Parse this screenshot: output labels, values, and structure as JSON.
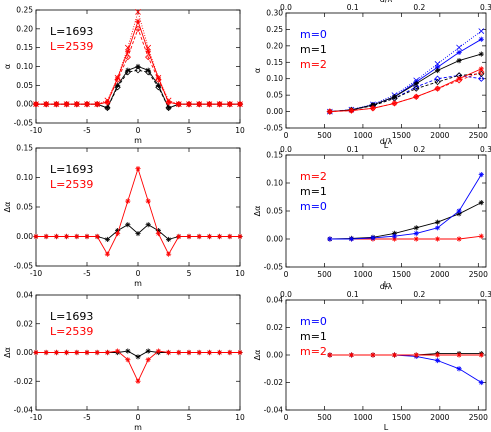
{
  "chart_data": [
    {
      "type": "line",
      "panel": "top-left",
      "xlabel": "m",
      "ylabel": "α",
      "xlim": [
        -10,
        10
      ],
      "ylim": [
        -0.05,
        0.25
      ],
      "xticks": [
        -10,
        -5,
        0,
        5,
        10
      ],
      "yticks": [
        -0.05,
        0.0,
        0.05,
        0.1,
        0.15,
        0.2,
        0.25
      ],
      "ytick_labels": [
        "-0.05",
        "0.00",
        "0.05",
        "0.10",
        "0.15",
        "0.20",
        "0.25"
      ],
      "legend": [
        "L=1693",
        "L=2539"
      ],
      "series": [
        {
          "name": "L=1693",
          "color": "#000000",
          "style": "solid",
          "marker": "asterisk",
          "x": [
            -10,
            -9,
            -8,
            -7,
            -6,
            -5,
            -4,
            -3,
            -2,
            -1,
            0,
            1,
            2,
            3,
            4,
            5,
            6,
            7,
            8,
            9,
            10
          ],
          "y": [
            0,
            0,
            0,
            0,
            0,
            0,
            0,
            -0.01,
            0.05,
            0.09,
            0.1,
            0.09,
            0.05,
            -0.01,
            0,
            0,
            0,
            0,
            0,
            0,
            0
          ]
        },
        {
          "name": "",
          "color": "#000000",
          "style": "dashed",
          "marker": "diamond",
          "x": [
            -10,
            -9,
            -8,
            -7,
            -6,
            -5,
            -4,
            -3,
            -2,
            -1,
            0,
            1,
            2,
            3,
            4,
            5,
            6,
            7,
            8,
            9,
            10
          ],
          "y": [
            0,
            0,
            0,
            0,
            0,
            0,
            0,
            -0.01,
            0.045,
            0.085,
            0.09,
            0.085,
            0.045,
            -0.01,
            0,
            0,
            0,
            0,
            0,
            0,
            0
          ]
        },
        {
          "name": "L=2539",
          "color": "#ff0000",
          "style": "solid",
          "marker": "asterisk",
          "x": [
            -10,
            -9,
            -8,
            -7,
            -6,
            -5,
            -4,
            -3,
            -2,
            -1,
            0,
            1,
            2,
            3,
            4,
            5,
            6,
            7,
            8,
            9,
            10
          ],
          "y": [
            0,
            0,
            0,
            0,
            0,
            0,
            0,
            0.005,
            0.07,
            0.14,
            0.22,
            0.14,
            0.07,
            0.005,
            0,
            0,
            0,
            0,
            0,
            0,
            0
          ]
        },
        {
          "name": "",
          "color": "#ff0000",
          "style": "dotted",
          "marker": "x",
          "x": [
            -10,
            -9,
            -8,
            -7,
            -6,
            -5,
            -4,
            -3,
            -2,
            -1,
            0,
            1,
            2,
            3,
            4,
            5,
            6,
            7,
            8,
            9,
            10
          ],
          "y": [
            0,
            0,
            0,
            0,
            0,
            0,
            0,
            0.01,
            0.07,
            0.15,
            0.245,
            0.15,
            0.07,
            0.01,
            0,
            0,
            0,
            0,
            0,
            0,
            0
          ]
        },
        {
          "name": "",
          "color": "#ff0000",
          "style": "dashed",
          "marker": "diamond",
          "x": [
            -10,
            -9,
            -8,
            -7,
            -6,
            -5,
            -4,
            -3,
            -2,
            -1,
            0,
            1,
            2,
            3,
            4,
            5,
            6,
            7,
            8,
            9,
            10
          ],
          "y": [
            0,
            0,
            0,
            0,
            0,
            0,
            0,
            0.005,
            0.065,
            0.125,
            0.2,
            0.125,
            0.065,
            0.005,
            0,
            0,
            0,
            0,
            0,
            0,
            0
          ]
        }
      ]
    },
    {
      "type": "line",
      "panel": "top-right",
      "xlabel": "L",
      "ylabel": "α",
      "top_axis_label": "d/λ",
      "xlim": [
        0,
        2600
      ],
      "ylim": [
        -0.05,
        0.3
      ],
      "xticks": [
        0,
        500,
        1000,
        1500,
        2000,
        2500
      ],
      "top_ticks": [
        "0.0",
        "0.1",
        "0.2",
        "0.3"
      ],
      "yticks": [
        -0.05,
        0.0,
        0.05,
        0.1,
        0.15,
        0.2,
        0.25,
        0.3
      ],
      "ytick_labels": [
        "-0.05",
        "0.00",
        "0.05",
        "0.10",
        "0.15",
        "0.20",
        "0.25",
        "0.30"
      ],
      "legend": [
        "m=0",
        "m=1",
        "m=2"
      ],
      "series": [
        {
          "name": "m=0",
          "color": "#0000ff",
          "style": "solid",
          "marker": "asterisk",
          "x": [
            570,
            850,
            1130,
            1410,
            1693,
            1970,
            2250,
            2539
          ],
          "y": [
            0.0,
            0.005,
            0.02,
            0.045,
            0.09,
            0.135,
            0.18,
            0.22
          ]
        },
        {
          "name": "",
          "color": "#0000ff",
          "style": "dotted",
          "marker": "x",
          "x": [
            570,
            850,
            1130,
            1410,
            1693,
            1970,
            2250,
            2539
          ],
          "y": [
            0.0,
            0.006,
            0.022,
            0.05,
            0.095,
            0.145,
            0.195,
            0.245
          ]
        },
        {
          "name": "",
          "color": "#0000ff",
          "style": "dashed",
          "marker": "diamond",
          "x": [
            570,
            850,
            1130,
            1410,
            1693,
            1970,
            2250,
            2539
          ],
          "y": [
            0.0,
            0.005,
            0.02,
            0.04,
            0.075,
            0.1,
            0.11,
            0.1
          ]
        },
        {
          "name": "m=1",
          "color": "#000000",
          "style": "solid",
          "marker": "asterisk",
          "x": [
            570,
            850,
            1130,
            1410,
            1693,
            1970,
            2250,
            2539
          ],
          "y": [
            0.0,
            0.005,
            0.02,
            0.045,
            0.085,
            0.125,
            0.155,
            0.175
          ]
        },
        {
          "name": "",
          "color": "#000000",
          "style": "dashed",
          "marker": "diamond",
          "x": [
            570,
            850,
            1130,
            1410,
            1693,
            1970,
            2250,
            2539
          ],
          "y": [
            0.0,
            0.005,
            0.018,
            0.04,
            0.07,
            0.09,
            0.11,
            0.115
          ]
        },
        {
          "name": "m=2",
          "color": "#ff0000",
          "style": "solid",
          "marker": "asterisk",
          "x": [
            570,
            850,
            1130,
            1410,
            1693,
            1970,
            2250,
            2539
          ],
          "y": [
            0.0,
            0.003,
            0.01,
            0.025,
            0.045,
            0.07,
            0.1,
            0.13
          ]
        },
        {
          "name": "",
          "color": "#ff0000",
          "style": "dashed",
          "marker": "diamond",
          "x": [
            570,
            850,
            1130,
            1410,
            1693,
            1970,
            2250,
            2539
          ],
          "y": [
            0.0,
            0.003,
            0.01,
            0.025,
            0.045,
            0.07,
            0.095,
            0.12
          ]
        }
      ]
    },
    {
      "type": "line",
      "panel": "middle-left",
      "xlabel": "m",
      "ylabel": "Δα",
      "xlim": [
        -10,
        10
      ],
      "ylim": [
        -0.05,
        0.15
      ],
      "xticks": [
        -10,
        -5,
        0,
        5,
        10
      ],
      "yticks": [
        -0.05,
        0.0,
        0.05,
        0.1,
        0.15
      ],
      "ytick_labels": [
        "-0.05",
        "0.00",
        "0.05",
        "0.10",
        "0.15"
      ],
      "legend": [
        "L=1693",
        "L=2539"
      ],
      "series": [
        {
          "name": "L=1693",
          "color": "#000000",
          "style": "solid",
          "marker": "asterisk",
          "x": [
            -10,
            -9,
            -8,
            -7,
            -6,
            -5,
            -4,
            -3,
            -2,
            -1,
            0,
            1,
            2,
            3,
            4,
            5,
            6,
            7,
            8,
            9,
            10
          ],
          "y": [
            0,
            0,
            0,
            0,
            0,
            0,
            0,
            -0.005,
            0.01,
            0.02,
            0.005,
            0.02,
            0.01,
            -0.005,
            0,
            0,
            0,
            0,
            0,
            0,
            0
          ]
        },
        {
          "name": "L=2539",
          "color": "#ff0000",
          "style": "solid",
          "marker": "asterisk",
          "x": [
            -10,
            -9,
            -8,
            -7,
            -6,
            -5,
            -4,
            -3,
            -2,
            -1,
            0,
            1,
            2,
            3,
            4,
            5,
            6,
            7,
            8,
            9,
            10
          ],
          "y": [
            0,
            0,
            0,
            0,
            0,
            0,
            0,
            -0.03,
            0.005,
            0.06,
            0.115,
            0.06,
            0.005,
            -0.03,
            0,
            0,
            0,
            0,
            0,
            0,
            0
          ]
        }
      ]
    },
    {
      "type": "line",
      "panel": "middle-right",
      "xlabel": "L",
      "ylabel": "Δα",
      "top_axis_label": "d/λ",
      "xlim": [
        0,
        2600
      ],
      "ylim": [
        -0.05,
        0.15
      ],
      "xticks": [
        0,
        500,
        1000,
        1500,
        2000,
        2500
      ],
      "top_ticks": [
        "0.0",
        "0.1",
        "0.2",
        "0.3"
      ],
      "yticks": [
        -0.05,
        0.0,
        0.05,
        0.1,
        0.15
      ],
      "ytick_labels": [
        "-0.05",
        "0.00",
        "0.05",
        "0.10",
        "0.15"
      ],
      "legend": [
        "m=2",
        "m=1",
        "m=0"
      ],
      "series": [
        {
          "name": "m=2",
          "color": "#ff0000",
          "style": "solid",
          "marker": "asterisk",
          "x": [
            570,
            850,
            1130,
            1410,
            1693,
            1970,
            2250,
            2539
          ],
          "y": [
            0,
            0,
            0,
            0,
            0,
            0,
            0,
            0.005
          ]
        },
        {
          "name": "m=1",
          "color": "#000000",
          "style": "solid",
          "marker": "asterisk",
          "x": [
            570,
            850,
            1130,
            1410,
            1693,
            1970,
            2250,
            2539
          ],
          "y": [
            0,
            0.001,
            0.003,
            0.01,
            0.02,
            0.03,
            0.045,
            0.065
          ]
        },
        {
          "name": "m=0",
          "color": "#0000ff",
          "style": "solid",
          "marker": "asterisk",
          "x": [
            570,
            850,
            1130,
            1410,
            1693,
            1970,
            2250,
            2539
          ],
          "y": [
            0,
            0,
            0.002,
            0.005,
            0.01,
            0.02,
            0.05,
            0.115
          ]
        }
      ]
    },
    {
      "type": "line",
      "panel": "bottom-left",
      "xlabel": "m",
      "ylabel": "Δα",
      "xlim": [
        -10,
        10
      ],
      "ylim": [
        -0.04,
        0.04
      ],
      "xticks": [
        -10,
        -5,
        0,
        5,
        10
      ],
      "yticks": [
        -0.04,
        -0.02,
        0.0,
        0.02,
        0.04
      ],
      "ytick_labels": [
        "-0.04",
        "-0.02",
        "0.00",
        "0.02",
        "0.04"
      ],
      "legend": [
        "L=1693",
        "L=2539"
      ],
      "series": [
        {
          "name": "L=1693",
          "color": "#000000",
          "style": "solid",
          "marker": "asterisk",
          "x": [
            -10,
            -9,
            -8,
            -7,
            -6,
            -5,
            -4,
            -3,
            -2,
            -1,
            0,
            1,
            2,
            3,
            4,
            5,
            6,
            7,
            8,
            9,
            10
          ],
          "y": [
            0,
            0,
            0,
            0,
            0,
            0,
            0,
            0,
            0,
            0.001,
            -0.003,
            0.001,
            0,
            0,
            0,
            0,
            0,
            0,
            0,
            0,
            0
          ]
        },
        {
          "name": "L=2539",
          "color": "#ff0000",
          "style": "solid",
          "marker": "asterisk",
          "x": [
            -10,
            -9,
            -8,
            -7,
            -6,
            -5,
            -4,
            -3,
            -2,
            -1,
            0,
            1,
            2,
            3,
            4,
            5,
            6,
            7,
            8,
            9,
            10
          ],
          "y": [
            0,
            0,
            0,
            0,
            0,
            0,
            0,
            0,
            0.001,
            -0.005,
            -0.02,
            -0.005,
            0.001,
            0,
            0,
            0,
            0,
            0,
            0,
            0,
            0
          ]
        }
      ]
    },
    {
      "type": "line",
      "panel": "bottom-right",
      "xlabel": "L",
      "ylabel": "Δα",
      "top_axis_label": "d/λ",
      "xlim": [
        0,
        2600
      ],
      "ylim": [
        -0.04,
        0.04
      ],
      "xticks": [
        0,
        500,
        1000,
        1500,
        2000,
        2500
      ],
      "top_ticks": [
        "0.0",
        "0.1",
        "0.2",
        "0.3"
      ],
      "yticks": [
        -0.04,
        -0.02,
        0.0,
        0.02,
        0.04
      ],
      "ytick_labels": [
        "-0.04",
        "-0.02",
        "0.00",
        "0.02",
        "0.04"
      ],
      "legend": [
        "m=0",
        "m=1",
        "m=2"
      ],
      "series": [
        {
          "name": "m=0",
          "color": "#0000ff",
          "style": "solid",
          "marker": "asterisk",
          "x": [
            570,
            850,
            1130,
            1410,
            1693,
            1970,
            2250,
            2539
          ],
          "y": [
            0,
            0,
            0,
            0,
            -0.001,
            -0.004,
            -0.01,
            -0.02
          ]
        },
        {
          "name": "m=1",
          "color": "#000000",
          "style": "solid",
          "marker": "asterisk",
          "x": [
            570,
            850,
            1130,
            1410,
            1693,
            1970,
            2250,
            2539
          ],
          "y": [
            0,
            0,
            0,
            0,
            0,
            0.001,
            0.001,
            0.001
          ]
        },
        {
          "name": "m=2",
          "color": "#ff0000",
          "style": "solid",
          "marker": "asterisk",
          "x": [
            570,
            850,
            1130,
            1410,
            1693,
            1970,
            2250,
            2539
          ],
          "y": [
            0,
            0,
            0,
            0,
            0,
            0,
            0,
            0
          ]
        }
      ]
    }
  ]
}
